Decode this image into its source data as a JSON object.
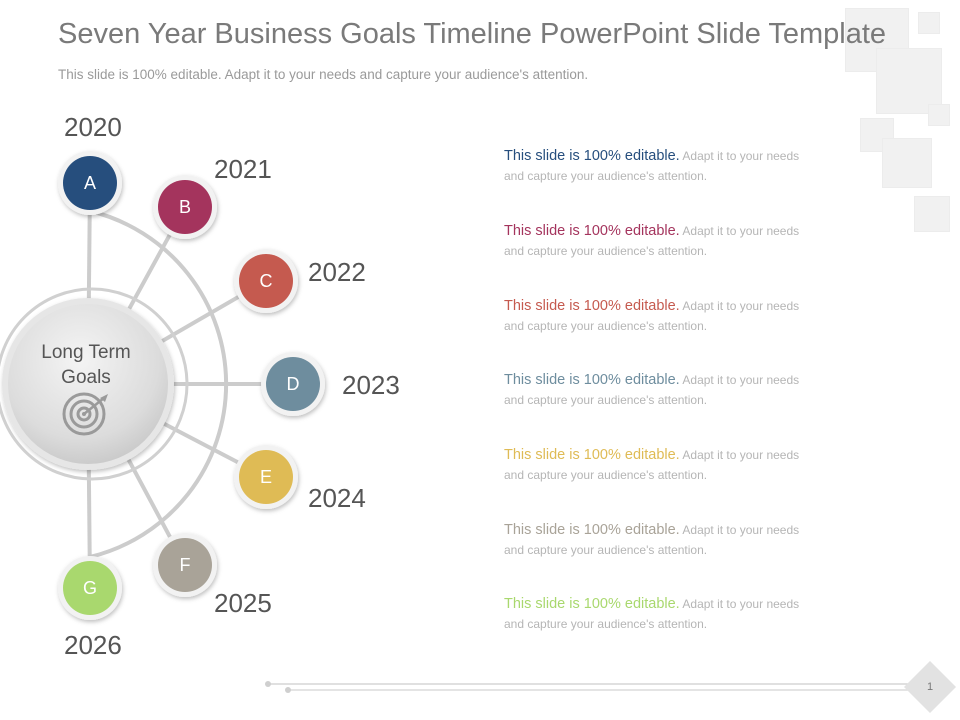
{
  "title": "Seven Year Business Goals Timeline PowerPoint Slide Template",
  "subtitle": "This slide is 100% editable. Adapt it to your needs and capture your audience's attention.",
  "center": {
    "line1": "Long Term",
    "line2": "Goals",
    "icon": "target-icon"
  },
  "milestones": [
    {
      "letter": "A",
      "year": "2020",
      "color": "#264e7d",
      "lead": "This slide is 100% editable.",
      "rest": "Adapt it to your needs and capture your audience's attention."
    },
    {
      "letter": "B",
      "year": "2021",
      "color": "#a4345d",
      "lead": "This slide is 100% editable.",
      "rest": "Adapt it to your needs and capture your audience's attention."
    },
    {
      "letter": "C",
      "year": "2022",
      "color": "#c55a4f",
      "lead": "This slide is 100% editable.",
      "rest": "Adapt it to your needs and capture your audience's attention."
    },
    {
      "letter": "D",
      "year": "2023",
      "color": "#6e8d9e",
      "lead": "This slide is 100% editable.",
      "rest": "Adapt it to your needs and capture your audience's attention."
    },
    {
      "letter": "E",
      "year": "2024",
      "color": "#dfbb55",
      "lead": "This slide is 100% editable.",
      "rest": "Adapt it to your needs and capture your audience's attention."
    },
    {
      "letter": "F",
      "year": "2025",
      "color": "#a9a398",
      "lead": "This slide is 100% editable.",
      "rest": "Adapt it to your needs and capture your audience's attention."
    },
    {
      "letter": "G",
      "year": "2026",
      "color": "#a9d86e",
      "lead": "This slide is 100% editable.",
      "rest": "Adapt it to your needs and capture your audience's attention."
    }
  ],
  "page_number": "1"
}
